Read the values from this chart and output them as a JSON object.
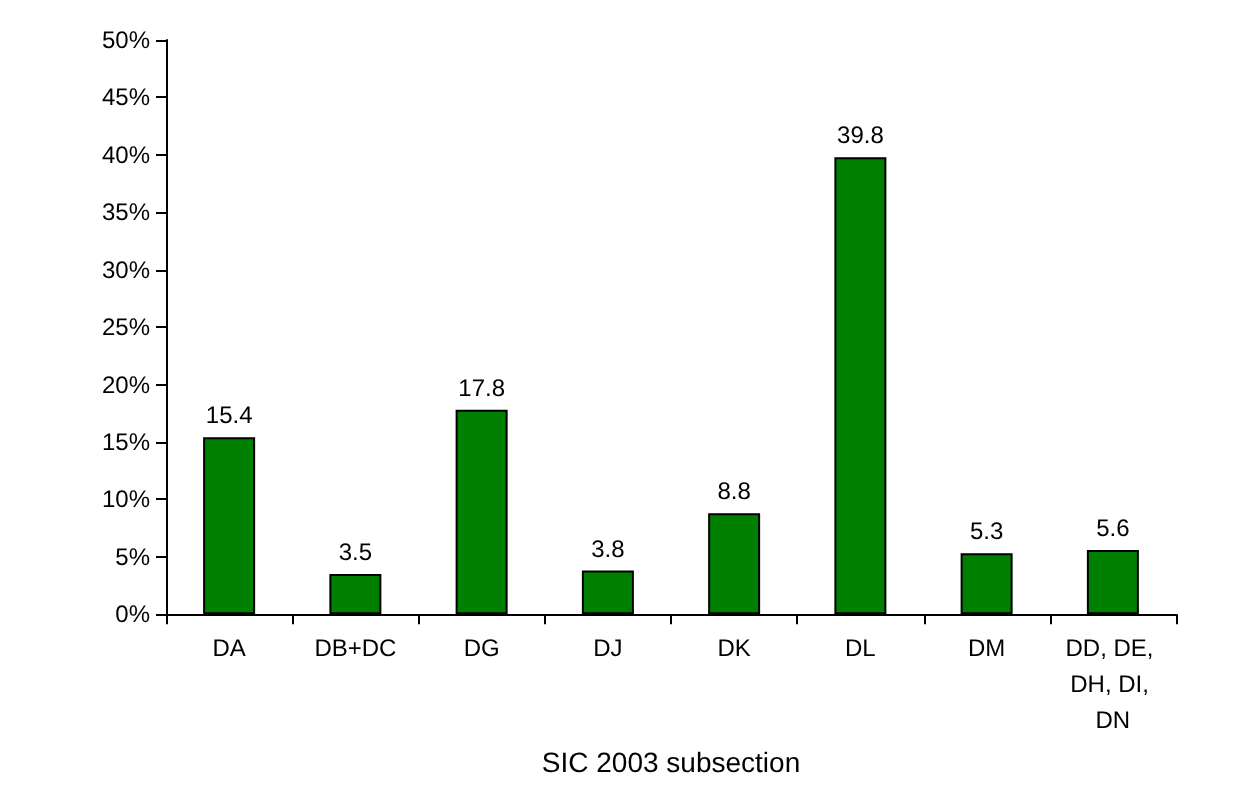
{
  "chart_data": {
    "type": "bar",
    "xlabel": "SIC 2003 subsection",
    "categories": [
      "DA",
      "DB+DC",
      "DG",
      "DJ",
      "DK",
      "DL",
      "DM",
      "DD, DE, DH, DI, DN"
    ],
    "values": [
      15.4,
      3.5,
      17.8,
      3.8,
      8.8,
      39.8,
      5.3,
      5.6
    ],
    "color": "#008000",
    "data_labels": true,
    "ylim": [
      0,
      50
    ],
    "yticks": [
      {
        "value": 0,
        "label": "0%"
      },
      {
        "value": 5,
        "label": "5%"
      },
      {
        "value": 10,
        "label": "10%"
      },
      {
        "value": 15,
        "label": "15%"
      },
      {
        "value": 20,
        "label": "20%"
      },
      {
        "value": 25,
        "label": "25%"
      },
      {
        "value": 30,
        "label": "30%"
      },
      {
        "value": 35,
        "label": "35%"
      },
      {
        "value": 40,
        "label": "40%"
      },
      {
        "value": 45,
        "label": "45%"
      },
      {
        "value": 50,
        "label": "50%"
      }
    ],
    "grid": false
  }
}
